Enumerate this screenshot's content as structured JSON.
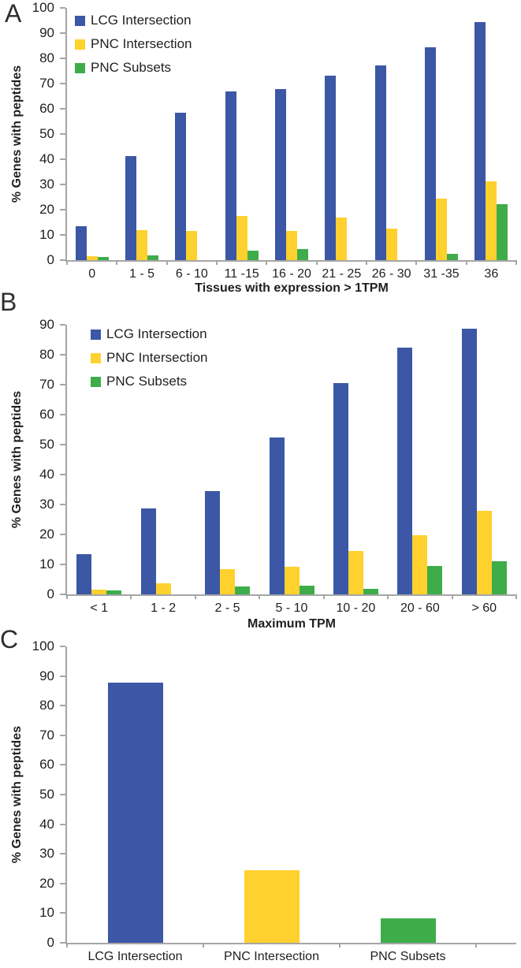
{
  "figure": {
    "background": "#ffffff",
    "axis_color": "#a6a6a6",
    "text_color": "#1f1f1f"
  },
  "series_colors": {
    "lcg_intersection": "#3b57a6",
    "pnc_intersection": "#ffd12e",
    "pnc_subsets": "#3ead49"
  },
  "chart_data": [
    {
      "panel_label": "A",
      "type": "bar",
      "title": "",
      "xlabel": "Tissues with expression > 1TPM",
      "ylabel": "% Genes with peptides",
      "ylim": [
        0,
        100
      ],
      "ytick_step": 10,
      "grid": false,
      "legend_visible": true,
      "legend_position": "top-left-inside",
      "categories": [
        "0",
        "1 - 5",
        "6 - 10",
        "11 -15",
        "16 - 20",
        "21 - 25",
        "26 - 30",
        "31 -35",
        "36"
      ],
      "series": [
        {
          "name": "LCG Intersection",
          "color": "#3b57a6",
          "values": [
            13.5,
            41.3,
            58.3,
            66.8,
            67.8,
            73.1,
            77.2,
            84.3,
            94.4
          ]
        },
        {
          "name": "PNC Intersection",
          "color": "#ffd12e",
          "values": [
            1.6,
            11.8,
            11.6,
            17.6,
            11.5,
            16.9,
            12.4,
            24.4,
            31.4
          ]
        },
        {
          "name": "PNC Subsets",
          "color": "#3ead49",
          "values": [
            1.3,
            1.9,
            0,
            3.9,
            4.4,
            0,
            0,
            2.6,
            22.3
          ]
        }
      ]
    },
    {
      "panel_label": "B",
      "type": "bar",
      "title": "",
      "xlabel": "Maximum TPM",
      "ylabel": "% Genes with peptides",
      "ylim": [
        0,
        90
      ],
      "ytick_step": 10,
      "grid": false,
      "legend_visible": true,
      "legend_position": "top-left-inside",
      "categories": [
        "< 1",
        "1 - 2",
        "2 - 5",
        "5 - 10",
        "10 - 20",
        "20 - 60",
        "> 60"
      ],
      "series": [
        {
          "name": "LCG Intersection",
          "color": "#3b57a6",
          "values": [
            13.3,
            28.7,
            34.4,
            52.4,
            70.4,
            82.4,
            88.8
          ]
        },
        {
          "name": "PNC Intersection",
          "color": "#ffd12e",
          "values": [
            1.7,
            3.7,
            8.3,
            9.1,
            14.4,
            19.8,
            27.9
          ]
        },
        {
          "name": "PNC Subsets",
          "color": "#3ead49",
          "values": [
            1.3,
            0,
            2.6,
            2.9,
            1.9,
            9.4,
            11.1
          ]
        }
      ]
    },
    {
      "panel_label": "C",
      "type": "bar",
      "title": "",
      "xlabel": "",
      "ylabel": "% Genes with peptides",
      "ylim": [
        0,
        100
      ],
      "ytick_step": 10,
      "grid": false,
      "legend_visible": false,
      "categories": [
        "LCG Intersection",
        "PNC Intersection",
        "PNC Subsets"
      ],
      "series": [
        {
          "name": "% Genes with peptides",
          "colors": [
            "#3b57a6",
            "#ffd12e",
            "#3ead49"
          ],
          "values": [
            87.8,
            24.5,
            8.2
          ]
        }
      ]
    }
  ]
}
